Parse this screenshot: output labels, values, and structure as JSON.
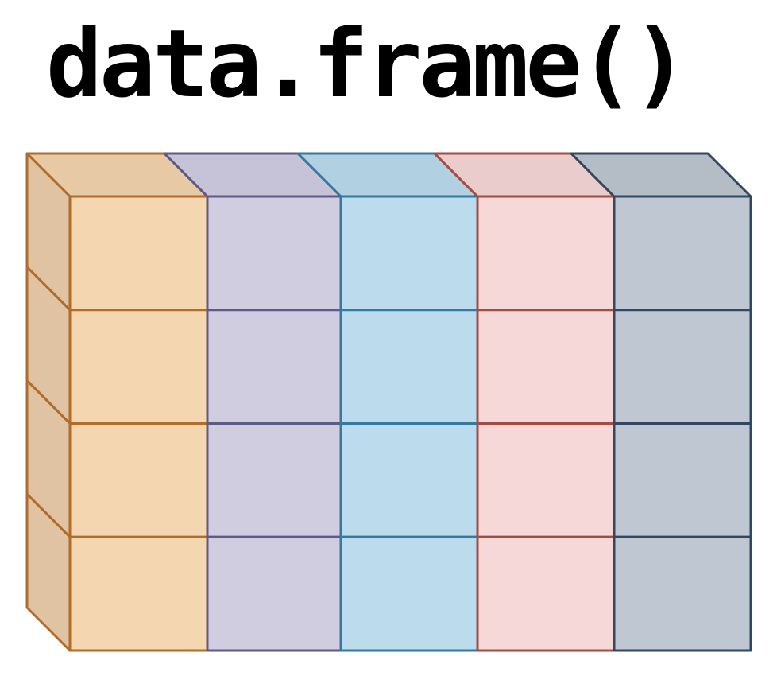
{
  "title": "data.frame()",
  "grid": {
    "rows": 4,
    "columns": [
      {
        "fill": "#F4D6B0",
        "top": "#E8C9A5",
        "side": "#DFC3A2",
        "stroke": "#AF6C2A"
      },
      {
        "fill": "#D1CDE0",
        "top": "#C6C2D7",
        "stroke": "#5E5A86"
      },
      {
        "fill": "#BCDBED",
        "top": "#B1D1E2",
        "stroke": "#347A9F"
      },
      {
        "fill": "#F5D8D7",
        "top": "#E9CCCB",
        "stroke": "#A54C40"
      },
      {
        "fill": "#BFC8D2",
        "top": "#B4BDC6",
        "stroke": "#314861"
      }
    ]
  }
}
